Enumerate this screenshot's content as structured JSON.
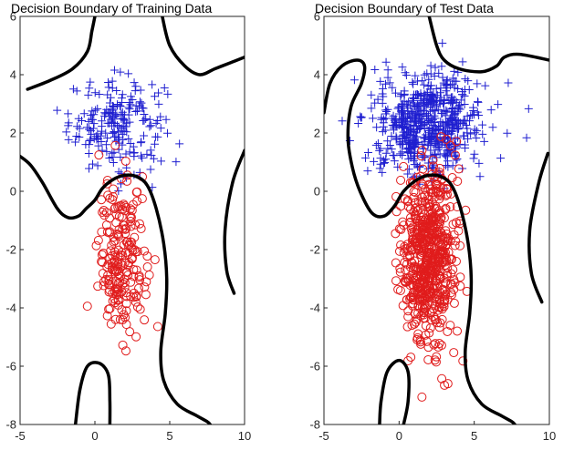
{
  "chart_data": [
    {
      "type": "scatter",
      "title": "Decision Boundary of Training Data",
      "xlabel": "",
      "ylabel": "",
      "xlim": [
        -5,
        10
      ],
      "ylim": [
        -8,
        6
      ],
      "xticks": [
        "-5",
        "0",
        "5",
        "10"
      ],
      "yticks": [
        "-8",
        "-6",
        "-4",
        "-2",
        "0",
        "2",
        "4",
        "6"
      ],
      "grid": false,
      "series": [
        {
          "marker": "plus",
          "color": "#1f1fd0",
          "approx_count": 210,
          "center": [
            1.5,
            2.3
          ],
          "spread": [
            1.6,
            0.8
          ],
          "x_range": [
            -3,
            10
          ],
          "y_range": [
            0,
            5
          ]
        },
        {
          "marker": "circle",
          "color": "#e01c1c",
          "approx_count": 210,
          "center": [
            1.8,
            -2.3
          ],
          "spread": [
            0.8,
            1.3
          ],
          "x_range": [
            -1.5,
            5
          ],
          "y_range": [
            -8,
            3.5
          ]
        }
      ],
      "boundary": {
        "color": "#000000",
        "curves": [
          [
            [
              -4.5,
              3.5
            ],
            [
              -3,
              3.8
            ],
            [
              -1.5,
              4.2
            ],
            [
              -0.5,
              4.8
            ],
            [
              -0.2,
              5.5
            ],
            [
              0,
              6
            ]
          ],
          [
            [
              4.5,
              6
            ],
            [
              5,
              5
            ],
            [
              6,
              4.3
            ],
            [
              7,
              4
            ],
            [
              8,
              4.2
            ],
            [
              9,
              4.4
            ],
            [
              10,
              4.6
            ]
          ],
          [
            [
              -5,
              1.2
            ],
            [
              -4.3,
              0.9
            ],
            [
              -3.5,
              0.3
            ],
            [
              -2.5,
              -0.6
            ],
            [
              -1.8,
              -0.9
            ],
            [
              -1.1,
              -0.85
            ],
            [
              -0.6,
              -0.6
            ],
            [
              0,
              -0.3
            ],
            [
              0.5,
              0.1
            ],
            [
              1.2,
              0.4
            ],
            [
              2,
              0.55
            ],
            [
              2.8,
              0.5
            ],
            [
              3.5,
              0.2
            ],
            [
              4.1,
              -0.6
            ],
            [
              4.6,
              -1.8
            ],
            [
              4.8,
              -3
            ],
            [
              4.7,
              -4.2
            ],
            [
              4.4,
              -5.5
            ],
            [
              4.6,
              -6.5
            ],
            [
              5.5,
              -7.3
            ],
            [
              6.8,
              -7.7
            ],
            [
              7.5,
              -7.9
            ],
            [
              7.7,
              -8
            ]
          ],
          [
            [
              -1.3,
              -8
            ],
            [
              -1,
              -6.8
            ],
            [
              -0.5,
              -6
            ],
            [
              0.3,
              -5.9
            ],
            [
              0.9,
              -6.3
            ],
            [
              1,
              -7.2
            ],
            [
              1,
              -8
            ]
          ],
          [
            [
              10,
              1.4
            ],
            [
              9.2,
              0.3
            ],
            [
              8.7,
              -1.3
            ],
            [
              8.8,
              -2.7
            ],
            [
              9.3,
              -3.5
            ]
          ]
        ]
      }
    },
    {
      "type": "scatter",
      "title": "Decision Boundary of Test Data",
      "xlabel": "",
      "ylabel": "",
      "xlim": [
        -5,
        10
      ],
      "ylim": [
        -8,
        6
      ],
      "xticks": [
        "-5",
        "0",
        "5",
        "10"
      ],
      "yticks": [
        "-8",
        "-6",
        "-4",
        "-2",
        "0",
        "2",
        "4",
        "6"
      ],
      "grid": false,
      "series": [
        {
          "marker": "plus",
          "color": "#1f1fd0",
          "approx_count": 620,
          "center": [
            1.8,
            2.3
          ],
          "spread": [
            1.8,
            0.85
          ],
          "x_range": [
            -5.5,
            10
          ],
          "y_range": [
            -0.5,
            5.5
          ]
        },
        {
          "marker": "circle",
          "color": "#e01c1c",
          "approx_count": 620,
          "center": [
            2,
            -2.2
          ],
          "spread": [
            0.9,
            1.5
          ],
          "x_range": [
            -2,
            7
          ],
          "y_range": [
            -7.5,
            3
          ]
        }
      ],
      "boundary": {
        "color": "#000000",
        "curves": [
          [
            [
              2,
              6
            ],
            [
              2.5,
              5
            ],
            [
              3,
              4.5
            ],
            [
              4,
              4.2
            ],
            [
              5.5,
              4.1
            ],
            [
              6.5,
              4.3
            ],
            [
              7,
              4.6
            ],
            [
              8,
              4.7
            ],
            [
              10,
              4.5
            ]
          ],
          [
            [
              -5,
              2.7
            ],
            [
              -4.6,
              3.7
            ],
            [
              -3.8,
              4.3
            ],
            [
              -2.8,
              4.5
            ],
            [
              -2.3,
              4.3
            ],
            [
              -2.5,
              3.7
            ],
            [
              -3.2,
              2.9
            ],
            [
              -3.4,
              1.8
            ],
            [
              -3.1,
              0.8
            ],
            [
              -2.6,
              0
            ],
            [
              -1.8,
              -0.75
            ],
            [
              -1,
              -0.85
            ],
            [
              -0.3,
              -0.5
            ],
            [
              0.3,
              0
            ],
            [
              1.2,
              0.4
            ],
            [
              2,
              0.55
            ],
            [
              2.8,
              0.5
            ],
            [
              3.5,
              0.2
            ],
            [
              4.1,
              -0.6
            ],
            [
              4.6,
              -1.8
            ],
            [
              4.8,
              -3
            ],
            [
              4.7,
              -4.2
            ],
            [
              4.4,
              -5.5
            ],
            [
              4.6,
              -6.5
            ],
            [
              5.5,
              -7.3
            ],
            [
              6.8,
              -7.7
            ],
            [
              7.5,
              -7.9
            ],
            [
              7.7,
              -8
            ]
          ],
          [
            [
              -1.3,
              -8
            ],
            [
              -1.2,
              -7.2
            ],
            [
              -0.8,
              -6.2
            ],
            [
              0,
              -5.8
            ],
            [
              0.6,
              -6.2
            ],
            [
              0.6,
              -7.2
            ],
            [
              0.3,
              -8
            ]
          ],
          [
            [
              9.9,
              1.3
            ],
            [
              9.3,
              0.3
            ],
            [
              8.7,
              -1.3
            ],
            [
              8.8,
              -2.8
            ],
            [
              9.5,
              -3.8
            ]
          ]
        ]
      }
    }
  ]
}
